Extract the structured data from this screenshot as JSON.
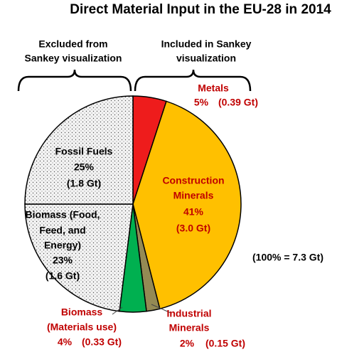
{
  "chart_data": {
    "type": "pie",
    "title": "Direct Material Input in the EU-28 in 2014",
    "annotations": {
      "excluded": [
        "Excluded from",
        "Sankey visualization"
      ],
      "included": [
        "Included in Sankey",
        "visualization"
      ],
      "total": "(100% = 7.3 Gt)"
    },
    "label_lines": [
      [
        "Metals"
      ],
      [
        "Construction",
        "Minerals"
      ],
      [
        "Industrial",
        "Minerals"
      ],
      [
        "Biomass",
        "(Materials use)"
      ],
      [
        "Biomass (Food,",
        "Feed, and",
        "Energy)"
      ],
      [
        "Fossil Fuels"
      ]
    ],
    "values": [
      5,
      41,
      2,
      4,
      23,
      25
    ],
    "value_labels": [
      "5%",
      "41%",
      "2%",
      "4%",
      "23%",
      "25%"
    ],
    "amount_labels": [
      "(0.39 Gt)",
      "(3.0 Gt)",
      "(0.15 Gt)",
      "(0.33 Gt)",
      "(1.6 Gt)",
      "(1.8 Gt)"
    ],
    "colors": [
      "#ee1c1c",
      "#ffc000",
      "#948a54",
      "#00b050",
      "dotted",
      "dotted"
    ]
  }
}
